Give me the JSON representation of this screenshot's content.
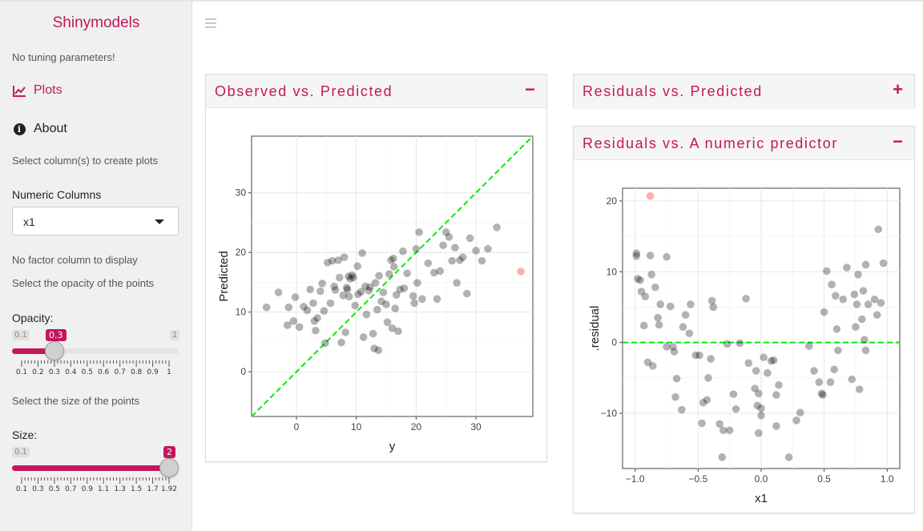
{
  "sidebar": {
    "brand": "Shinymodels",
    "no_tuning": "No tuning parameters!",
    "nav": [
      {
        "label": "Plots",
        "icon": "line-chart-icon",
        "active": true
      },
      {
        "label": "About",
        "icon": "info-circle-icon",
        "active": false
      }
    ],
    "select_cols_text": "Select column(s) to create plots",
    "numeric_columns_label": "Numeric Columns",
    "numeric_columns_value": "x1",
    "no_factor_text": "No factor column to display",
    "opacity_text": "Select the opacity of the points",
    "opacity": {
      "label": "Opacity:",
      "min_label": "0.1",
      "max_label": "1",
      "value_label": "0.3",
      "min": 0.1,
      "max": 1,
      "value": 0.3,
      "grid": [
        "0.1",
        "0.2",
        "0.3",
        "0.4",
        "0.5",
        "0.6",
        "0.7",
        "0.8",
        "0.9",
        "1"
      ]
    },
    "size_text": "Select the size of the points",
    "size": {
      "label": "Size:",
      "min_label": "0.1",
      "value_label": "2",
      "min": 0.1,
      "max": 2,
      "value": 2,
      "grid": [
        "0.1",
        "0.3",
        "0.5",
        "0.7",
        "0.9",
        "1.1",
        "1.3",
        "1.5",
        "1.7",
        "1.92"
      ]
    }
  },
  "cards": {
    "obs_pred": {
      "title": "Observed vs. Predicted",
      "tool": "−"
    },
    "resid_pred": {
      "title": "Residuals vs. Predicted",
      "tool": "+"
    },
    "resid_num": {
      "title": "Residuals vs. A numeric predictor",
      "tool": "−"
    }
  },
  "colors": {
    "accent": "#c2185b",
    "point": "#000000",
    "highlight": "#ff6b6b",
    "ref_line": "#00ee00"
  },
  "chart_data": [
    {
      "type": "scatter",
      "xlabel": "y",
      "ylabel": "Predicted",
      "xlim": [
        -7.5,
        39.5
      ],
      "ylim": [
        -7.5,
        39.5
      ],
      "xticks": [
        0,
        10,
        20,
        30
      ],
      "yticks": [
        0,
        10,
        20,
        30
      ],
      "reference_line": "identity (dashed)",
      "highlight_point": [
        37.5,
        16.8
      ],
      "points": [
        [
          -5,
          10.8
        ],
        [
          -3,
          13.3
        ],
        [
          -1.5,
          7.8
        ],
        [
          -1.3,
          10.8
        ],
        [
          -0.5,
          8.5
        ],
        [
          -0.2,
          12.5
        ],
        [
          0.5,
          7.5
        ],
        [
          1.2,
          10.9
        ],
        [
          1.8,
          10.3
        ],
        [
          2.3,
          13.8
        ],
        [
          2.8,
          11.5
        ],
        [
          3,
          8.5
        ],
        [
          3.2,
          6.9
        ],
        [
          3.5,
          9.0
        ],
        [
          4,
          13.5
        ],
        [
          4.3,
          14.8
        ],
        [
          4.6,
          10.2
        ],
        [
          4.8,
          4.8
        ],
        [
          5.2,
          18.3
        ],
        [
          5.7,
          11.5
        ],
        [
          6,
          18.6
        ],
        [
          6.3,
          14.3
        ],
        [
          6.5,
          13.7
        ],
        [
          7,
          18.7
        ],
        [
          7.2,
          15.8
        ],
        [
          7.5,
          4.9
        ],
        [
          7.8,
          12.8
        ],
        [
          8,
          19.2
        ],
        [
          8.2,
          6.6
        ],
        [
          8.4,
          14.1
        ],
        [
          8.5,
          13.8
        ],
        [
          8.7,
          16.0
        ],
        [
          8.8,
          12.6
        ],
        [
          9,
          15.6
        ],
        [
          9.3,
          16.2
        ],
        [
          9.5,
          15.8
        ],
        [
          9.8,
          11.1
        ],
        [
          10.2,
          17.7
        ],
        [
          10.3,
          13.0
        ],
        [
          10.8,
          13.4
        ],
        [
          11,
          19.9
        ],
        [
          11.2,
          5.8
        ],
        [
          11.5,
          14.3
        ],
        [
          11.7,
          9.6
        ],
        [
          12.1,
          13.6
        ],
        [
          12.3,
          14.2
        ],
        [
          12.8,
          6.4
        ],
        [
          13,
          3.9
        ],
        [
          13.2,
          14.9
        ],
        [
          13.5,
          10.4
        ],
        [
          13.7,
          3.6
        ],
        [
          13.8,
          16.1
        ],
        [
          14.2,
          11.8
        ],
        [
          14.5,
          13.3
        ],
        [
          15,
          11.3
        ],
        [
          15.2,
          8.3
        ],
        [
          15.5,
          16.4
        ],
        [
          15.8,
          18.7
        ],
        [
          16,
          7.3
        ],
        [
          16.2,
          19.0
        ],
        [
          16.3,
          17.6
        ],
        [
          16.5,
          10.6
        ],
        [
          16.7,
          12.9
        ],
        [
          17,
          6.8
        ],
        [
          17.3,
          13.8
        ],
        [
          17.8,
          20.2
        ],
        [
          18,
          14.0
        ],
        [
          18.5,
          16.5
        ],
        [
          19.5,
          12.7
        ],
        [
          19.7,
          11.5
        ],
        [
          20,
          20.6
        ],
        [
          20.2,
          14.9
        ],
        [
          20.5,
          23.4
        ],
        [
          21,
          12.2
        ],
        [
          22,
          18.2
        ],
        [
          23,
          16.6
        ],
        [
          23.5,
          12.2
        ],
        [
          24,
          16.9
        ],
        [
          24.5,
          21.2
        ],
        [
          25,
          23.4
        ],
        [
          25.5,
          22.6
        ],
        [
          26,
          18.6
        ],
        [
          26.5,
          20.8
        ],
        [
          26.8,
          14.9
        ],
        [
          27.3,
          18.7
        ],
        [
          27.8,
          19.2
        ],
        [
          28.5,
          13.1
        ],
        [
          29,
          22.4
        ],
        [
          30,
          20.3
        ],
        [
          31,
          18.6
        ],
        [
          32,
          20.6
        ],
        [
          33.5,
          24.2
        ]
      ]
    },
    {
      "type": "scatter",
      "xlabel": "x1",
      "ylabel": ".residual",
      "xlim": [
        -1.1,
        1.1
      ],
      "ylim": [
        -17.8,
        21.8
      ],
      "xticks": [
        "-1.0",
        "-0.5",
        "0.0",
        "0.5",
        "1.0"
      ],
      "yticks": [
        "-10",
        "0",
        "10",
        "20"
      ],
      "reference_line": "y = 0 (dashed)",
      "highlight_point": [
        -0.88,
        20.7
      ],
      "points": [
        [
          -0.99,
          12.6
        ],
        [
          -0.99,
          12.2
        ],
        [
          -0.98,
          9.0
        ],
        [
          -0.96,
          8.8
        ],
        [
          -0.95,
          7.2
        ],
        [
          -0.93,
          2.4
        ],
        [
          -0.92,
          6.5
        ],
        [
          -0.9,
          -2.8
        ],
        [
          -0.88,
          12.3
        ],
        [
          -0.87,
          9.6
        ],
        [
          -0.86,
          -3.3
        ],
        [
          -0.84,
          7.8
        ],
        [
          -0.82,
          3.5
        ],
        [
          -0.81,
          2.5
        ],
        [
          -0.8,
          5.4
        ],
        [
          -0.75,
          12.1
        ],
        [
          -0.75,
          -0.6
        ],
        [
          -0.72,
          5.1
        ],
        [
          -0.7,
          -0.6
        ],
        [
          -0.69,
          -1.3
        ],
        [
          -0.68,
          -7.7
        ],
        [
          -0.67,
          -5.1
        ],
        [
          -0.63,
          -9.5
        ],
        [
          -0.62,
          2.2
        ],
        [
          -0.6,
          3.9
        ],
        [
          -0.57,
          1.3
        ],
        [
          -0.56,
          5.4
        ],
        [
          -0.52,
          -1.8
        ],
        [
          -0.49,
          -1.8
        ],
        [
          -0.47,
          -11.4
        ],
        [
          -0.46,
          -8.5
        ],
        [
          -0.43,
          -8.1
        ],
        [
          -0.42,
          -5.0
        ],
        [
          -0.4,
          -2.3
        ],
        [
          -0.39,
          5.9
        ],
        [
          -0.38,
          5.0
        ],
        [
          -0.33,
          -11.5
        ],
        [
          -0.31,
          -16.2
        ],
        [
          -0.3,
          -12.4
        ],
        [
          -0.27,
          -0.2
        ],
        [
          -0.25,
          -12.4
        ],
        [
          -0.22,
          -7.3
        ],
        [
          -0.2,
          -9.4
        ],
        [
          -0.17,
          -0.1
        ],
        [
          -0.12,
          6.2
        ],
        [
          -0.1,
          -2.9
        ],
        [
          -0.05,
          -6.5
        ],
        [
          -0.04,
          -4.0
        ],
        [
          -0.03,
          -8.9
        ],
        [
          -0.02,
          -12.8
        ],
        [
          -0.02,
          -7.2
        ],
        [
          0.0,
          -9.3
        ],
        [
          0.0,
          -10.3
        ],
        [
          0.02,
          -2.1
        ],
        [
          0.05,
          -4.3
        ],
        [
          0.08,
          -2.6
        ],
        [
          0.1,
          -2.5
        ],
        [
          0.12,
          -7.4
        ],
        [
          0.12,
          -11.8
        ],
        [
          0.14,
          -6.0
        ],
        [
          0.22,
          -16.2
        ],
        [
          0.28,
          -11.0
        ],
        [
          0.31,
          -9.9
        ],
        [
          0.38,
          -0.5
        ],
        [
          0.42,
          -4.0
        ],
        [
          0.46,
          -5.6
        ],
        [
          0.48,
          -7.2
        ],
        [
          0.49,
          -7.4
        ],
        [
          0.5,
          4.3
        ],
        [
          0.52,
          10.1
        ],
        [
          0.55,
          -5.6
        ],
        [
          0.56,
          8.2
        ],
        [
          0.58,
          -3.8
        ],
        [
          0.59,
          6.6
        ],
        [
          0.6,
          1.9
        ],
        [
          0.61,
          -1.1
        ],
        [
          0.65,
          6.1
        ],
        [
          0.68,
          10.6
        ],
        [
          0.72,
          -5.2
        ],
        [
          0.74,
          6.8
        ],
        [
          0.75,
          2.2
        ],
        [
          0.76,
          5.4
        ],
        [
          0.77,
          9.6
        ],
        [
          0.78,
          -6.6
        ],
        [
          0.8,
          3.3
        ],
        [
          0.81,
          7.3
        ],
        [
          0.82,
          0.4
        ],
        [
          0.83,
          11.0
        ],
        [
          0.83,
          -1.1
        ],
        [
          0.85,
          5.4
        ],
        [
          0.9,
          6.1
        ],
        [
          0.92,
          3.9
        ],
        [
          0.93,
          16.0
        ],
        [
          0.95,
          5.6
        ],
        [
          0.97,
          11.2
        ]
      ]
    }
  ]
}
